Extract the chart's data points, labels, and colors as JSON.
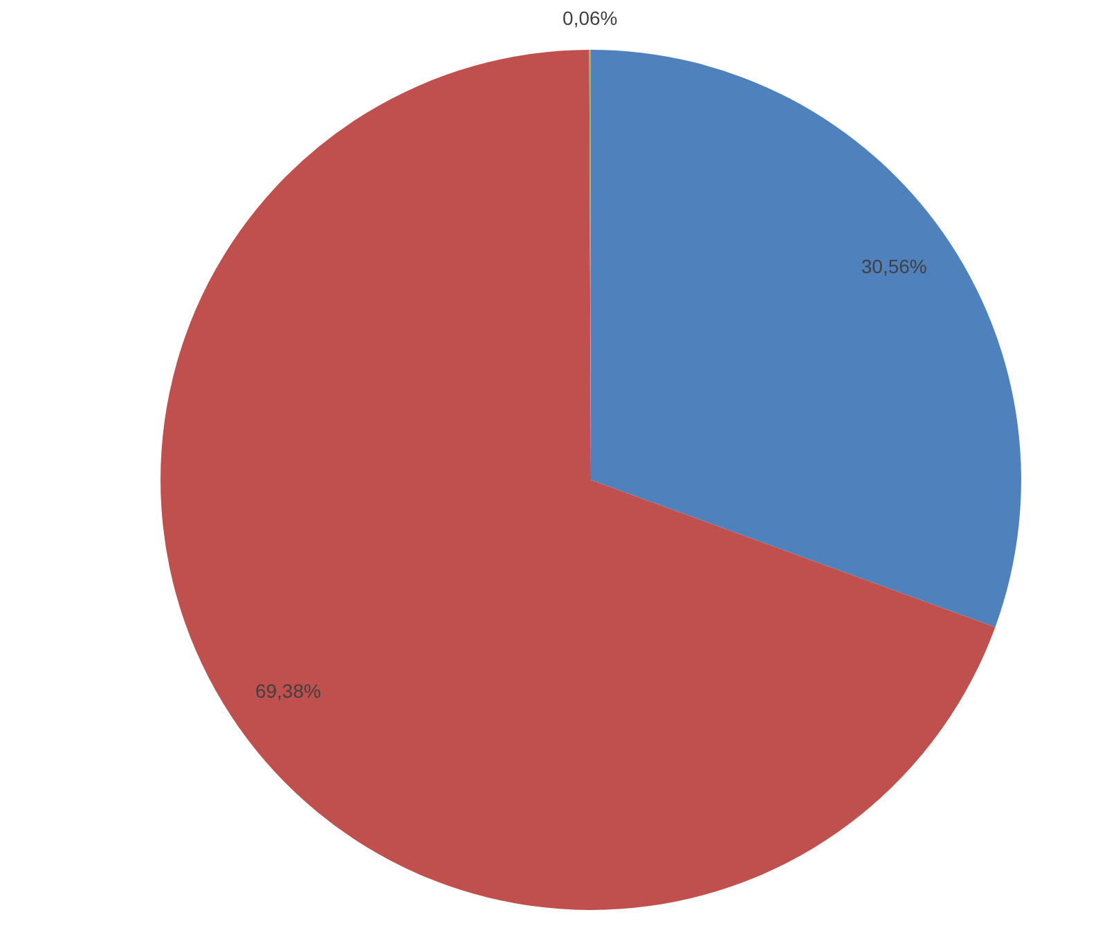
{
  "chart_data": {
    "type": "pie",
    "categories": [
      null,
      null,
      null
    ],
    "values": [
      30.56,
      69.38,
      0.06
    ],
    "colors": [
      "#4f81bd",
      "#c0504d",
      "#9bbb59"
    ],
    "value_labels": [
      "30,56%",
      "69,38%",
      "0,06%"
    ],
    "legend": false
  }
}
